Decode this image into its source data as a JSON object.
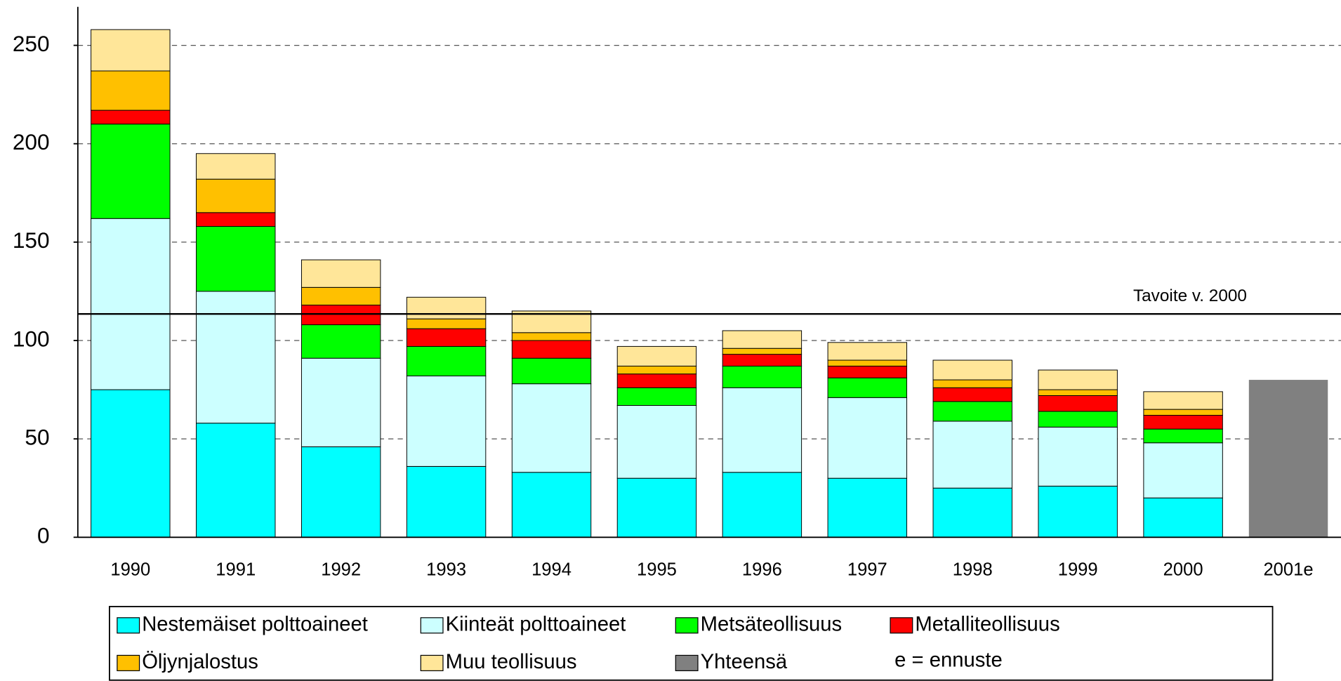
{
  "chart_data": {
    "type": "stacked_bar",
    "categories": [
      "1990",
      "1991",
      "1992",
      "1993",
      "1994",
      "1995",
      "1996",
      "1997",
      "1998",
      "1999",
      "2000",
      "2001e"
    ],
    "series": [
      {
        "name": "Nestemäiset polttoaineet",
        "color": "#00ffff",
        "values": [
          75,
          58,
          46,
          36,
          33,
          30,
          33,
          30,
          25,
          26,
          20,
          null
        ]
      },
      {
        "name": "Kiinteät polttoaineet",
        "color": "#ccffff",
        "values": [
          87,
          67,
          45,
          46,
          45,
          37,
          43,
          41,
          34,
          30,
          28,
          null
        ]
      },
      {
        "name": "Metsäteollisuus",
        "color": "#00ff00",
        "values": [
          48,
          33,
          17,
          15,
          13,
          9,
          11,
          10,
          10,
          8,
          7,
          null
        ]
      },
      {
        "name": "Metalliteollisuus",
        "color": "#ff0000",
        "values": [
          7,
          7,
          10,
          9,
          9,
          7,
          6,
          6,
          7,
          8,
          7,
          null
        ]
      },
      {
        "name": "Öljynjalostus",
        "color": "#ffc000",
        "values": [
          20,
          17,
          9,
          5,
          4,
          4,
          3,
          3,
          4,
          3,
          3,
          null
        ]
      },
      {
        "name": "Muu teollisuus",
        "color": "#ffe699",
        "values": [
          21,
          13,
          14,
          11,
          11,
          10,
          9,
          9,
          10,
          10,
          9,
          null
        ]
      },
      {
        "name": "Yhteensä",
        "color": "#808080",
        "values": [
          null,
          null,
          null,
          null,
          null,
          null,
          null,
          null,
          null,
          null,
          null,
          80
        ]
      }
    ],
    "ylim": [
      0,
      270
    ],
    "yticks": [
      0,
      50,
      100,
      150,
      200,
      250
    ],
    "grid": true,
    "target": {
      "value": 113.5,
      "label": "Tavoite v. 2000"
    },
    "legend_note": "e = ennuste"
  }
}
